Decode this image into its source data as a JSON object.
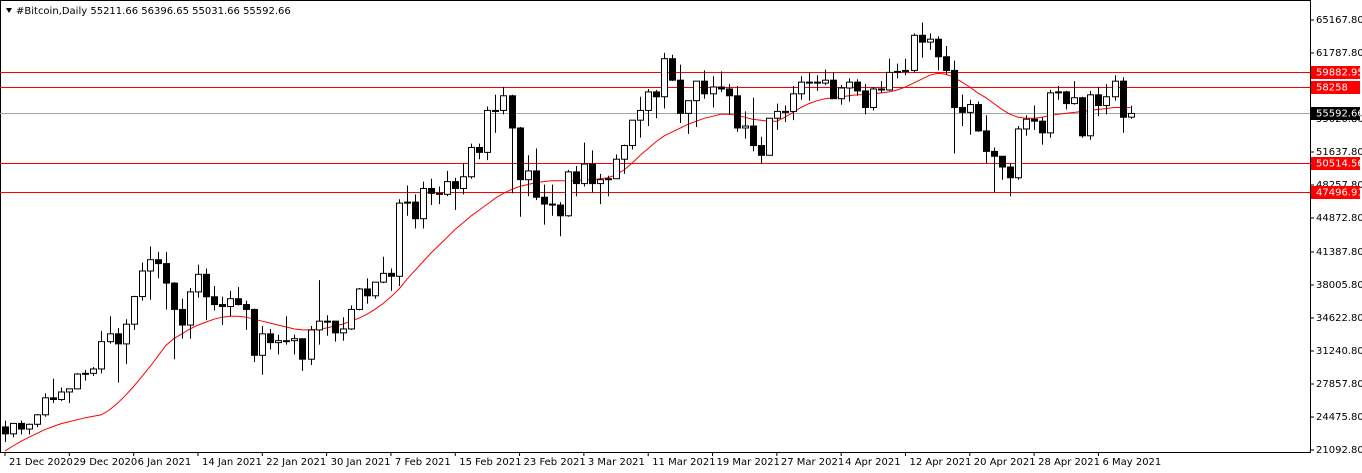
{
  "chart_data": {
    "type": "candlestick",
    "title": "#Bitcoin,Daily",
    "categories": [
      "21 Dec 2020",
      null,
      null,
      null,
      null,
      null,
      null,
      null,
      "29 Dec 2020",
      null,
      null,
      null,
      null,
      null,
      null,
      null,
      "6 Jan 2021",
      null,
      null,
      null,
      null,
      null,
      null,
      null,
      "14 Jan 2021",
      null,
      null,
      null,
      null,
      null,
      null,
      null,
      "22 Jan 2021",
      null,
      null,
      null,
      null,
      null,
      null,
      null,
      "30 Jan 2021",
      null,
      null,
      null,
      null,
      null,
      null,
      null,
      "7 Feb 2021",
      null,
      null,
      null,
      null,
      null,
      null,
      null,
      "15 Feb 2021",
      null,
      null,
      null,
      null,
      null,
      null,
      null,
      "23 Feb 2021",
      null,
      null,
      null,
      null,
      null,
      null,
      null,
      "3 Mar 2021",
      null,
      null,
      null,
      null,
      null,
      null,
      null,
      "11 Mar 2021",
      null,
      null,
      null,
      null,
      null,
      null,
      null,
      "19 Mar 2021",
      null,
      null,
      null,
      null,
      null,
      null,
      null,
      "27 Mar 2021",
      null,
      null,
      null,
      null,
      null,
      null,
      null,
      "4 Apr 2021",
      null,
      null,
      null,
      null,
      null,
      null,
      null,
      "12 Apr 2021",
      null,
      null,
      null,
      null,
      null,
      null,
      null,
      "20 Apr 2021",
      null,
      null,
      null,
      null,
      null,
      null,
      null,
      "28 Apr 2021",
      null,
      null,
      null,
      null,
      null,
      null,
      null,
      "6 May 2021",
      null,
      null,
      null,
      null
    ],
    "open": [
      23460,
      22750,
      23820,
      23240,
      23730,
      24700,
      26440,
      26270,
      27040,
      27360,
      28880,
      28950,
      29400,
      32200,
      33000,
      31970,
      33990,
      36820,
      39440,
      40600,
      40200,
      38200,
      35500,
      33900,
      37300,
      39100,
      36800,
      36000,
      35800,
      36600,
      36000,
      35500,
      30800,
      33000,
      32100,
      32300,
      32300,
      32500,
      30400,
      33400,
      34300,
      34300,
      33100,
      33500,
      35500,
      37600,
      36900,
      38300,
      39200,
      38900,
      46400,
      46500,
      44800,
      47900,
      47400,
      47300,
      48600,
      47900,
      49100,
      52100,
      51600,
      55900,
      55900,
      57400,
      54100,
      48800,
      49700,
      47000,
      46300,
      46200,
      45100,
      49600,
      48400,
      50400,
      48400,
      48800,
      48900,
      50900,
      52300,
      54900,
      55900,
      57800,
      57300,
      61200,
      59000,
      55600,
      56900,
      58900,
      57600,
      58300,
      58100,
      57400,
      54100,
      54300,
      52300,
      51300,
      55100,
      55800,
      55800,
      57600,
      58800,
      58800,
      58700,
      59000,
      57100,
      58200,
      58800,
      57900,
      56200,
      58100,
      58000,
      59800,
      59900,
      60000,
      63600,
      62900,
      63200,
      61400,
      60000,
      56200,
      55700,
      56500,
      53800,
      51700,
      51200,
      50100,
      49000,
      54000,
      55000,
      54800,
      53600,
      57700,
      57800,
      56600,
      57200,
      53300,
      57500,
      56400,
      57300,
      58900,
      55211.66
    ],
    "high": [
      24100,
      23800,
      24100,
      23800,
      24780,
      26900,
      28400,
      27500,
      27400,
      28970,
      29300,
      29600,
      33300,
      34800,
      33600,
      34500,
      36900,
      40300,
      41950,
      41400,
      41400,
      38300,
      36600,
      37700,
      40100,
      39700,
      37900,
      36800,
      37400,
      37800,
      36400,
      35600,
      33800,
      33500,
      32900,
      34800,
      32900,
      32500,
      33800,
      38500,
      34900,
      34300,
      34700,
      35900,
      37700,
      38700,
      38300,
      40900,
      39700,
      46800,
      48200,
      47300,
      48600,
      48900,
      48100,
      49700,
      49000,
      50500,
      52500,
      52500,
      56300,
      57500,
      58300,
      57500,
      54200,
      51300,
      52000,
      48300,
      48300,
      46500,
      49800,
      50200,
      52600,
      51800,
      49400,
      49200,
      51400,
      52400,
      54900,
      57300,
      58100,
      58000,
      61800,
      61600,
      60600,
      56900,
      58900,
      60000,
      59400,
      59900,
      58600,
      58400,
      55800,
      57200,
      53200,
      55100,
      56600,
      56400,
      58400,
      59400,
      59800,
      59500,
      60100,
      59800,
      58500,
      59200,
      59100,
      58600,
      58300,
      58900,
      61200,
      60700,
      61200,
      63800,
      64900,
      63800,
      63500,
      62500,
      61000,
      57500,
      57000,
      56800,
      55400,
      52100,
      51200,
      50500,
      54300,
      55400,
      56400,
      55200,
      58000,
      58400,
      57900,
      58900,
      57300,
      57900,
      58300,
      58600,
      59500,
      59300,
      56396.65
    ],
    "low": [
      21900,
      22400,
      22700,
      22700,
      23450,
      24500,
      25900,
      26100,
      25900,
      27300,
      28200,
      28700,
      28950,
      32000,
      28000,
      29900,
      33400,
      36400,
      36500,
      38700,
      35500,
      30400,
      32500,
      32500,
      36700,
      34400,
      35400,
      33900,
      34800,
      35900,
      33400,
      30100,
      28800,
      31400,
      30900,
      31900,
      30900,
      29200,
      29800,
      31900,
      32800,
      32200,
      32300,
      33400,
      35400,
      36100,
      36600,
      38200,
      37400,
      37900,
      45100,
      43800,
      43800,
      46200,
      46300,
      47100,
      45700,
      47300,
      48900,
      50900,
      50800,
      53600,
      55500,
      47400,
      45000,
      47100,
      46700,
      44200,
      45100,
      43000,
      45000,
      47100,
      48100,
      47500,
      46300,
      47100,
      48900,
      49400,
      51900,
      53100,
      54300,
      55100,
      56100,
      58900,
      54600,
      53500,
      54200,
      57100,
      56200,
      57800,
      55500,
      53700,
      53000,
      51700,
      50400,
      51300,
      53900,
      54700,
      54900,
      57000,
      56900,
      57900,
      58500,
      57100,
      56500,
      56800,
      57400,
      55500,
      55900,
      57700,
      57900,
      59200,
      59500,
      59800,
      61300,
      62100,
      60000,
      59600,
      51500,
      54300,
      53400,
      53700,
      50500,
      47500,
      48800,
      47100,
      48800,
      53300,
      53900,
      52400,
      53100,
      57000,
      56000,
      56500,
      53100,
      52900,
      55300,
      55500,
      56900,
      53600,
      55031.66
    ],
    "close": [
      22750,
      23820,
      23240,
      23730,
      24700,
      26440,
      26270,
      27040,
      27360,
      28880,
      28950,
      29400,
      32200,
      33000,
      31970,
      33990,
      36820,
      39440,
      40600,
      40200,
      38200,
      35500,
      33900,
      37300,
      39100,
      36800,
      36000,
      35800,
      36600,
      36000,
      35500,
      30800,
      33000,
      32100,
      32300,
      32300,
      32500,
      30400,
      33400,
      34300,
      34300,
      33100,
      33500,
      35500,
      37600,
      36900,
      38300,
      39200,
      38900,
      46400,
      46500,
      44800,
      47900,
      47400,
      47300,
      48600,
      47900,
      49100,
      52100,
      51600,
      55900,
      55900,
      57400,
      54100,
      48800,
      49700,
      47000,
      46300,
      46200,
      45100,
      49600,
      48400,
      50400,
      48400,
      48800,
      48900,
      50900,
      52300,
      54900,
      55900,
      57800,
      57300,
      61200,
      59000,
      55600,
      56900,
      58900,
      57600,
      58300,
      58100,
      57400,
      54100,
      54300,
      52300,
      51300,
      55100,
      55800,
      55800,
      57600,
      58800,
      58800,
      58700,
      59000,
      57100,
      58200,
      58800,
      57900,
      56200,
      58100,
      58000,
      59800,
      59900,
      60000,
      63600,
      62900,
      63200,
      61400,
      60000,
      56200,
      55700,
      56500,
      53800,
      51700,
      51200,
      50100,
      49000,
      54000,
      55000,
      54800,
      53600,
      57700,
      57800,
      56600,
      57200,
      53300,
      57500,
      56400,
      57300,
      58900,
      55200,
      55592.66
    ],
    "up_color": "#ffffff",
    "down_color": "#000000",
    "ma_color": "#ff0000",
    "ma_values": [
      21000,
      21500,
      22000,
      22400,
      22800,
      23200,
      23500,
      23800,
      24000,
      24200,
      24400,
      24550,
      24700,
      25200,
      25900,
      26700,
      27600,
      28600,
      29600,
      30700,
      31800,
      32500,
      33000,
      33500,
      33900,
      34200,
      34500,
      34700,
      34800,
      34800,
      34700,
      34500,
      34300,
      34100,
      33900,
      33700,
      33500,
      33400,
      33400,
      33500,
      33600,
      33800,
      34000,
      34300,
      34600,
      35000,
      35500,
      36100,
      36800,
      37600,
      38600,
      39500,
      40400,
      41300,
      42100,
      42900,
      43700,
      44400,
      45100,
      45700,
      46300,
      46900,
      47400,
      47800,
      48100,
      48300,
      48500,
      48600,
      48700,
      48700,
      48700,
      48700,
      48800,
      48800,
      48900,
      49000,
      49300,
      49800,
      50500,
      51300,
      52000,
      52700,
      53300,
      53700,
      54100,
      54500,
      54800,
      55100,
      55300,
      55500,
      55500,
      55400,
      55200,
      55000,
      54900,
      54800,
      54800,
      55200,
      55700,
      56200,
      56600,
      56900,
      57100,
      57200,
      57300,
      57400,
      57500,
      57500,
      57600,
      57700,
      57800,
      58000,
      58300,
      58700,
      59100,
      59500,
      59700,
      59600,
      59300,
      58800,
      58300,
      57700,
      57200,
      56600,
      56000,
      55500,
      55200,
      55100,
      55100,
      55200,
      55400,
      55500,
      55600,
      55700,
      55800,
      55900,
      56000,
      56100,
      56200,
      56200,
      56200
    ],
    "hlines": [
      {
        "value": 59882.95,
        "color": "#ff0000"
      },
      {
        "value": 58258.0,
        "color": "#ff0000"
      },
      {
        "value": 50514.56,
        "color": "#ff0000"
      },
      {
        "value": 47496.91,
        "color": "#ff0000"
      }
    ],
    "price_line_color": "#9aa8a8",
    "ylim": [
      20888,
      67218
    ],
    "yticks": [
      {
        "value": 65167.8,
        "label": "65167.80"
      },
      {
        "value": 61787.8,
        "label": "61787.80"
      },
      {
        "value": 55020.8,
        "label": "55020.80"
      },
      {
        "value": 51637.8,
        "label": "51637.80"
      },
      {
        "value": 48257.8,
        "label": "48257.80"
      },
      {
        "value": 44872.8,
        "label": "44872.80"
      },
      {
        "value": 41387.8,
        "label": "41387.80"
      },
      {
        "value": 38005.8,
        "label": "38005.80"
      },
      {
        "value": 34622.8,
        "label": "34622.80"
      },
      {
        "value": 31240.8,
        "label": "31240.80"
      },
      {
        "value": 27857.8,
        "label": "27857.80"
      },
      {
        "value": 24475.8,
        "label": "24475.80"
      },
      {
        "value": 21092.8,
        "label": "21092.80"
      }
    ]
  }
}
